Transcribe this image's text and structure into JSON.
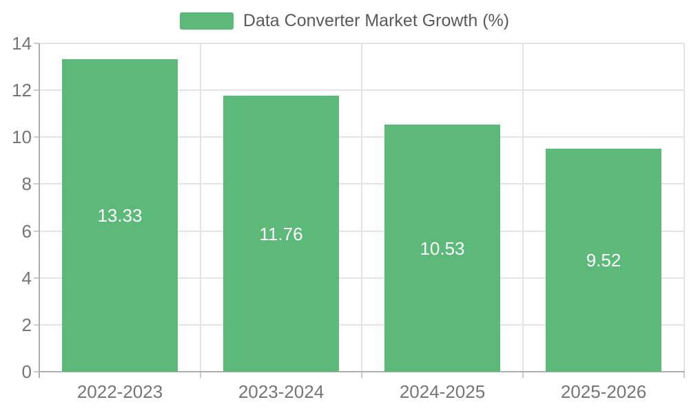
{
  "chart_data": {
    "type": "bar",
    "title": "Data Converter Market Growth (%)",
    "categories": [
      "2022-2023",
      "2023-2024",
      "2024-2025",
      "2025-2026"
    ],
    "values": [
      13.33,
      11.76,
      10.53,
      9.52
    ],
    "value_labels": [
      "13.33",
      "11.76",
      "10.53",
      "9.52"
    ],
    "xlabel": "",
    "ylabel": "",
    "ylim": [
      0,
      14
    ],
    "yticks": [
      0,
      2,
      4,
      6,
      8,
      10,
      12,
      14
    ],
    "ytick_labels": [
      "0",
      "2",
      "4",
      "6",
      "8",
      "10",
      "12",
      "14"
    ],
    "grid": "both",
    "legend_position": "top-center",
    "colors": {
      "bar": "#5cb97a",
      "value_label": "#ffffff",
      "axis_label": "#757575",
      "legend_text": "#5a5a5a",
      "gridline": "#e4e4e4",
      "spine": "#aeaeae",
      "tick": "#cccccc",
      "background": "#ffffff"
    }
  }
}
